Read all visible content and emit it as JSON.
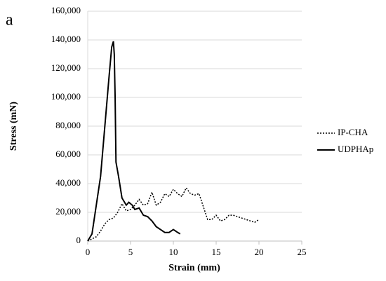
{
  "chart_data": {
    "type": "line",
    "annotation": "a",
    "xlabel": "Strain (mm)",
    "ylabel": "Stress (mN)",
    "xlim": [
      0,
      25
    ],
    "xticks": [
      0,
      5,
      10,
      15,
      20,
      25
    ],
    "ylim": [
      0,
      160000
    ],
    "yticks": [
      0,
      {
        "value": 20000,
        "label": "20,000"
      },
      {
        "value": 40000,
        "label": "40,000"
      },
      {
        "value": 60000,
        "label": "60,000"
      },
      {
        "value": 80000,
        "label": "80,000"
      },
      {
        "value": 100000,
        "label": "100,000"
      },
      {
        "value": 120000,
        "label": "120,000"
      },
      {
        "value": 140000,
        "label": "140,000"
      },
      {
        "value": 160000,
        "label": "160,000"
      }
    ],
    "grid": true,
    "legend": "right",
    "series": [
      {
        "name": "IP-CHA",
        "color": "#000000",
        "dash": "dotted",
        "x": [
          0,
          1,
          1.5,
          2,
          2.5,
          3,
          3.5,
          4,
          4.5,
          5,
          5.5,
          6,
          6.5,
          7,
          7.5,
          8,
          8.5,
          9,
          9.5,
          10,
          10.5,
          11,
          11.5,
          12,
          12.5,
          13,
          13.5,
          14,
          14.5,
          15,
          15.5,
          16,
          16.5,
          17,
          17.5,
          18,
          18.5,
          19,
          19.5,
          20
        ],
        "values": [
          0,
          3000,
          7000,
          12000,
          15000,
          16000,
          20000,
          26000,
          21000,
          22000,
          25000,
          29000,
          25000,
          26000,
          34000,
          25000,
          27000,
          33000,
          31000,
          36000,
          33000,
          31000,
          37000,
          33000,
          32000,
          33000,
          24000,
          15000,
          15000,
          18000,
          14000,
          15000,
          18000,
          18000,
          17000,
          16000,
          15000,
          14000,
          13000,
          15000
        ]
      },
      {
        "name": "UDPHAp",
        "color": "#000000",
        "dash": "solid",
        "x": [
          0,
          0.5,
          1,
          1.5,
          2,
          2.5,
          2.8,
          3.0,
          3.1,
          3.2,
          3.3,
          3.6,
          4,
          4.5,
          4.8,
          5.2,
          5.5,
          6,
          6.5,
          7,
          7.5,
          8,
          8.5,
          9,
          9.5,
          10,
          10.5,
          10.8
        ],
        "values": [
          0,
          5000,
          25000,
          45000,
          80000,
          115000,
          135000,
          139000,
          130000,
          100000,
          55000,
          45000,
          30000,
          25000,
          27000,
          25000,
          22000,
          23000,
          18000,
          17000,
          14000,
          10000,
          8000,
          6000,
          6000,
          8000,
          6000,
          5000
        ]
      }
    ]
  }
}
